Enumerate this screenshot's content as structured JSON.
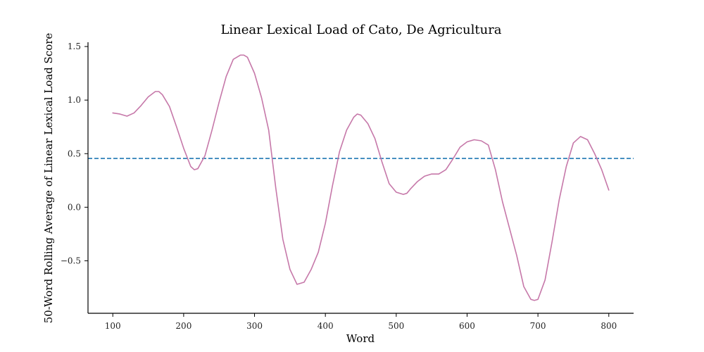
{
  "colors": {
    "series_line": "#c678a9",
    "reference_line": "#1f77b4",
    "axis": "#000000"
  },
  "chart_data": {
    "type": "line",
    "title": "Linear Lexical Load of Cato, De Agricultura",
    "xlabel": "Word",
    "ylabel": "50-Word Rolling Average of Linear Lexical Load Score",
    "xlim": [
      65,
      835
    ],
    "ylim": [
      -0.99,
      1.54
    ],
    "xticks": [
      100,
      200,
      300,
      400,
      500,
      600,
      700,
      800
    ],
    "yticks": [
      -0.5,
      0.0,
      0.5,
      1.0,
      1.5
    ],
    "ytick_labels": [
      "−0.5",
      "0.0",
      "0.5",
      "1.0",
      "1.5"
    ],
    "grid": false,
    "reference_line": {
      "type": "horizontal",
      "style": "dashed",
      "y": 0.455
    },
    "series": [
      {
        "x": [
          100,
          110,
          120,
          130,
          140,
          150,
          160,
          165,
          170,
          180,
          190,
          200,
          210,
          215,
          220,
          230,
          240,
          250,
          260,
          270,
          280,
          285,
          290,
          300,
          310,
          320,
          330,
          340,
          350,
          360,
          370,
          375,
          380,
          390,
          400,
          410,
          420,
          430,
          440,
          445,
          450,
          460,
          470,
          480,
          490,
          500,
          510,
          515,
          520,
          530,
          540,
          550,
          560,
          570,
          580,
          590,
          600,
          610,
          620,
          630,
          640,
          650,
          660,
          670,
          680,
          690,
          695,
          700,
          710,
          720,
          730,
          740,
          750,
          760,
          770,
          780,
          790,
          800
        ],
        "values": [
          0.88,
          0.87,
          0.85,
          0.88,
          0.95,
          1.03,
          1.08,
          1.08,
          1.05,
          0.94,
          0.75,
          0.55,
          0.38,
          0.35,
          0.36,
          0.48,
          0.72,
          0.98,
          1.22,
          1.38,
          1.42,
          1.42,
          1.4,
          1.25,
          1.02,
          0.72,
          0.18,
          -0.3,
          -0.58,
          -0.72,
          -0.7,
          -0.64,
          -0.58,
          -0.42,
          -0.15,
          0.2,
          0.52,
          0.72,
          0.84,
          0.87,
          0.86,
          0.78,
          0.64,
          0.42,
          0.22,
          0.14,
          0.12,
          0.13,
          0.17,
          0.24,
          0.29,
          0.31,
          0.31,
          0.35,
          0.45,
          0.56,
          0.61,
          0.63,
          0.62,
          0.58,
          0.35,
          0.05,
          -0.2,
          -0.45,
          -0.74,
          -0.86,
          -0.87,
          -0.86,
          -0.68,
          -0.32,
          0.07,
          0.38,
          0.6,
          0.66,
          0.63,
          0.5,
          0.35,
          0.16
        ]
      }
    ]
  }
}
